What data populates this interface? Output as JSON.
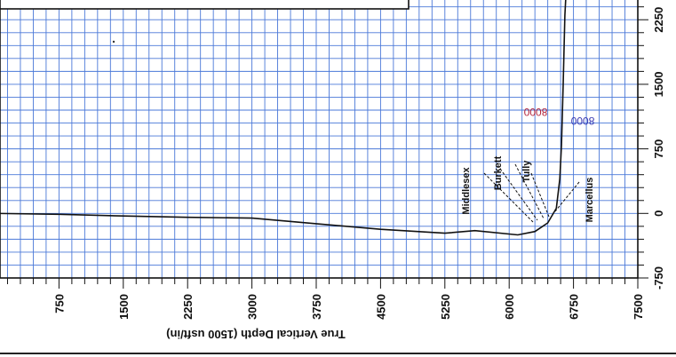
{
  "chart_data": {
    "type": "line",
    "title": "",
    "xlabel": "True Vertical Depth (1500 usft/in)",
    "ylabel": "",
    "xlim": [
      0,
      7500
    ],
    "ylim": [
      -750,
      2500
    ],
    "x_ticks": [
      "750",
      "1500",
      "2250",
      "3000",
      "3750",
      "4500",
      "5250",
      "6000",
      "6750",
      "7500"
    ],
    "y_ticks": [
      "-750",
      "0",
      "750",
      "1500",
      "2250"
    ],
    "grid": true,
    "series": [
      {
        "color": "#1a1a2e",
        "points": [
          [
            0,
            0
          ],
          [
            750,
            -10
          ],
          [
            1500,
            -30
          ],
          [
            2250,
            -45
          ],
          [
            3000,
            -55
          ],
          [
            3750,
            -120
          ],
          [
            4500,
            -185
          ],
          [
            5250,
            -230
          ],
          [
            5600,
            -200
          ],
          [
            6100,
            -250
          ],
          [
            6300,
            -210
          ],
          [
            6450,
            -110
          ],
          [
            6550,
            60
          ],
          [
            6590,
            400
          ],
          [
            6610,
            800
          ],
          [
            6630,
            1500
          ],
          [
            6650,
            2300
          ],
          [
            6665,
            2600
          ]
        ]
      }
    ],
    "annotations": [
      "Middlesex",
      "Burkett",
      "Tully",
      "Marcellus"
    ],
    "md_labels": [
      {
        "text": "8000",
        "color": "#b3243b"
      },
      {
        "text": "8000",
        "color": "#3b3bb3"
      }
    ]
  }
}
